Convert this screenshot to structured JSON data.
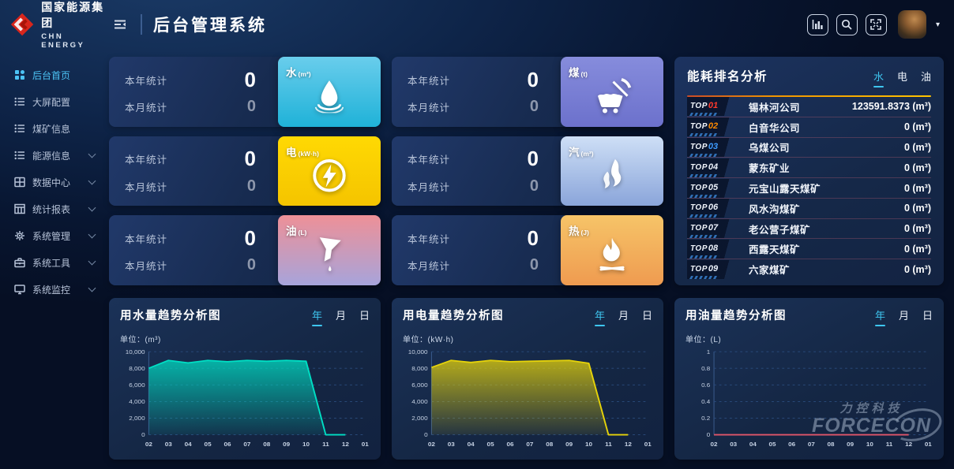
{
  "header": {
    "brand": {
      "name_cn": "国家能源集团",
      "name_en": "CHN ENERGY"
    },
    "title": "后台管理系统",
    "action_icons": [
      "bar-chart-icon",
      "search-icon",
      "fullscreen-icon"
    ]
  },
  "sidebar": {
    "items": [
      {
        "label": "后台首页",
        "icon": "dashboard-icon",
        "active": true,
        "expandable": false
      },
      {
        "label": "大屏配置",
        "icon": "list-icon",
        "active": false,
        "expandable": false
      },
      {
        "label": "煤矿信息",
        "icon": "list-icon",
        "active": false,
        "expandable": false
      },
      {
        "label": "能源信息",
        "icon": "list-icon",
        "active": false,
        "expandable": true
      },
      {
        "label": "数据中心",
        "icon": "data-grid-icon",
        "active": false,
        "expandable": true
      },
      {
        "label": "统计报表",
        "icon": "table-icon",
        "active": false,
        "expandable": true
      },
      {
        "label": "系统管理",
        "icon": "gear-icon",
        "active": false,
        "expandable": true
      },
      {
        "label": "系统工具",
        "icon": "toolbox-icon",
        "active": false,
        "expandable": true
      },
      {
        "label": "系统监控",
        "icon": "monitor-icon",
        "active": false,
        "expandable": true
      }
    ]
  },
  "stats": {
    "year_label": "本年统计",
    "month_label": "本月统计",
    "cards": [
      {
        "kind": "water",
        "label": "水",
        "unit": "(m³)",
        "year_value": "0",
        "month_value": "0",
        "tile_from": "#69cdec",
        "tile_to": "#1fb2d8",
        "icon": "water-drop-icon"
      },
      {
        "kind": "coal",
        "label": "煤",
        "unit": "(t)",
        "year_value": "0",
        "month_value": "0",
        "tile_from": "#868cdc",
        "tile_to": "#6c71cc",
        "icon": "coal-cart-icon"
      },
      {
        "kind": "electric",
        "label": "电",
        "unit": "(kW·h)",
        "year_value": "0",
        "month_value": "0",
        "tile_from": "#ffd903",
        "tile_to": "#f5c400",
        "icon": "lightning-icon"
      },
      {
        "kind": "steam",
        "label": "汽",
        "unit": "(m³)",
        "year_value": "0",
        "month_value": "0",
        "tile_from": "#cedff6",
        "tile_to": "#8aa5da",
        "icon": "steam-icon"
      },
      {
        "kind": "oil",
        "label": "油",
        "unit": "(L)",
        "year_value": "0",
        "month_value": "0",
        "tile_from": "#ee9097",
        "tile_to": "#a7a4db",
        "icon": "oil-funnel-icon"
      },
      {
        "kind": "heat",
        "label": "热",
        "unit": "(J)",
        "year_value": "0",
        "month_value": "0",
        "tile_from": "#f6c468",
        "tile_to": "#ef9b50",
        "icon": "flame-icon"
      }
    ]
  },
  "ranking": {
    "title": "能耗排名分析",
    "tabs": [
      {
        "label": "水",
        "active": true
      },
      {
        "label": "电",
        "active": false
      },
      {
        "label": "油",
        "active": false
      }
    ],
    "rank_prefix": "TOP",
    "rows": [
      {
        "num": "01",
        "num_color": "#ff392b",
        "name": "锡林河公司",
        "value": "123591.8373 (m³)"
      },
      {
        "num": "02",
        "num_color": "#ff8a00",
        "name": "白音华公司",
        "value": "0 (m³)"
      },
      {
        "num": "03",
        "num_color": "#3d9bff",
        "name": "乌煤公司",
        "value": "0 (m³)"
      },
      {
        "num": "04",
        "num_color": "#e9eff8",
        "name": "蒙东矿业",
        "value": "0 (m³)"
      },
      {
        "num": "05",
        "num_color": "#e9eff8",
        "name": "元宝山露天煤矿",
        "value": "0 (m³)"
      },
      {
        "num": "06",
        "num_color": "#e9eff8",
        "name": "风水沟煤矿",
        "value": "0 (m³)"
      },
      {
        "num": "07",
        "num_color": "#e9eff8",
        "name": "老公营子煤矿",
        "value": "0 (m³)"
      },
      {
        "num": "08",
        "num_color": "#e9eff8",
        "name": "西露天煤矿",
        "value": "0 (m³)"
      },
      {
        "num": "09",
        "num_color": "#e9eff8",
        "name": "六家煤矿",
        "value": "0 (m³)"
      }
    ]
  },
  "chart_data": [
    {
      "type": "area",
      "title": "用水量趋势分析图",
      "unit_label": "单位：(m³)",
      "tabs": [
        "年",
        "月",
        "日"
      ],
      "active_tab": "年",
      "line_color": "#00dfc4",
      "fill": true,
      "y_max": 10000,
      "y_ticks": [
        "10,000",
        "8,000",
        "6,000",
        "4,000",
        "2,000",
        "0"
      ],
      "categories": [
        "02",
        "03",
        "04",
        "05",
        "06",
        "07",
        "08",
        "09",
        "10",
        "11",
        "12",
        "01"
      ],
      "values": [
        8000,
        8950,
        8650,
        8950,
        8800,
        8950,
        8850,
        8950,
        8850,
        0,
        0,
        null
      ]
    },
    {
      "type": "area",
      "title": "用电量趋势分析图",
      "unit_label": "单位：(kW·h)",
      "tabs": [
        "年",
        "月",
        "日"
      ],
      "active_tab": "年",
      "line_color": "#e6d30a",
      "fill": true,
      "y_max": 10000,
      "y_ticks": [
        "10,000",
        "8,000",
        "6,000",
        "4,000",
        "2,000",
        "0"
      ],
      "categories": [
        "02",
        "03",
        "04",
        "05",
        "06",
        "07",
        "08",
        "09",
        "10",
        "11",
        "12",
        "01"
      ],
      "values": [
        8100,
        8950,
        8700,
        8950,
        8800,
        8850,
        8900,
        8950,
        8600,
        0,
        0,
        null
      ]
    },
    {
      "type": "line",
      "title": "用油量趋势分析图",
      "unit_label": "单位：(L)",
      "tabs": [
        "年",
        "月",
        "日"
      ],
      "active_tab": "年",
      "line_color": "#e0566a",
      "fill": false,
      "y_max": 1,
      "y_ticks": [
        "1",
        "0.8",
        "0.6",
        "0.4",
        "0.2",
        "0"
      ],
      "categories": [
        "02",
        "03",
        "04",
        "05",
        "06",
        "07",
        "08",
        "09",
        "10",
        "11",
        "12",
        "01"
      ],
      "values": [
        0,
        0,
        0,
        0,
        0,
        0,
        0,
        0,
        0,
        0,
        0,
        null
      ]
    }
  ],
  "watermark": {
    "line1": "力控科技",
    "line2": "FORCECON"
  }
}
